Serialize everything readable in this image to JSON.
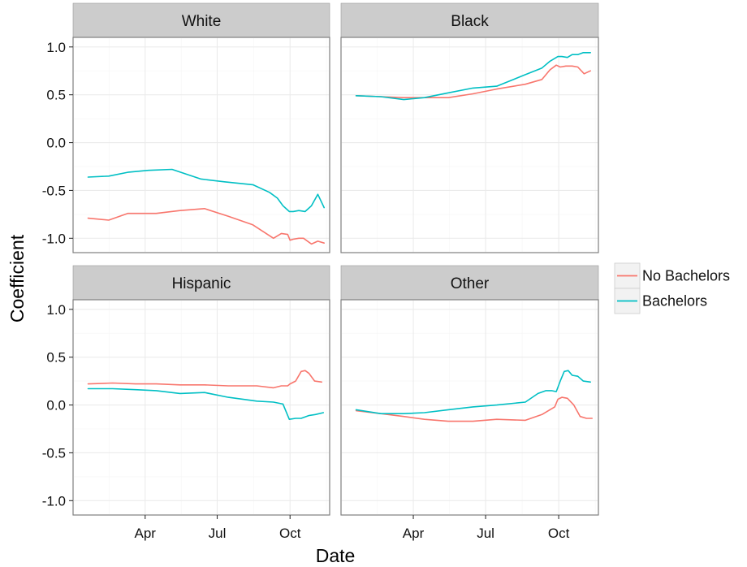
{
  "chart_data": {
    "type": "line",
    "layout": "facet_wrap_2x2",
    "xlabel": "Date",
    "ylabel": "Coefficient",
    "x_ticks": [
      {
        "label": "Apr",
        "date": "2016-04-01"
      },
      {
        "label": "Jul",
        "date": "2016-07-01"
      },
      {
        "label": "Oct",
        "date": "2016-10-01"
      }
    ],
    "xlim": [
      "2016-01-01",
      "2016-11-20"
    ],
    "ylim": [
      -1.15,
      1.1
    ],
    "y_ticks": [
      {
        "value": 1.0,
        "label": "1.0"
      },
      {
        "value": 0.5,
        "label": "0.5"
      },
      {
        "value": 0.0,
        "label": "0.0"
      },
      {
        "value": -0.5,
        "label": "-0.5"
      },
      {
        "value": -1.0,
        "label": "-1.0"
      }
    ],
    "grid": true,
    "legend": {
      "position": "right",
      "entries": [
        {
          "name": "No Bachelors",
          "color": "#F8766D"
        },
        {
          "name": "Bachelors",
          "color": "#00BFC4"
        }
      ]
    },
    "panels": [
      {
        "title": "White",
        "series": [
          {
            "name": "No Bachelors",
            "points": [
              [
                "2016-01-20",
                -0.79
              ],
              [
                "2016-02-15",
                -0.81
              ],
              [
                "2016-03-10",
                -0.74
              ],
              [
                "2016-04-15",
                -0.74
              ],
              [
                "2016-05-15",
                -0.71
              ],
              [
                "2016-06-15",
                -0.69
              ],
              [
                "2016-07-15",
                -0.77
              ],
              [
                "2016-08-15",
                -0.86
              ],
              [
                "2016-09-10",
                -1.0
              ],
              [
                "2016-09-20",
                -0.95
              ],
              [
                "2016-09-28",
                -0.96
              ],
              [
                "2016-10-01",
                -1.02
              ],
              [
                "2016-10-05",
                -1.01
              ],
              [
                "2016-10-12",
                -1.0
              ],
              [
                "2016-10-18",
                -1.0
              ],
              [
                "2016-10-28",
                -1.06
              ],
              [
                "2016-11-05",
                -1.03
              ],
              [
                "2016-11-13",
                -1.05
              ]
            ]
          },
          {
            "name": "Bachelors",
            "points": [
              [
                "2016-01-20",
                -0.36
              ],
              [
                "2016-02-15",
                -0.35
              ],
              [
                "2016-03-10",
                -0.31
              ],
              [
                "2016-04-05",
                -0.29
              ],
              [
                "2016-05-05",
                -0.28
              ],
              [
                "2016-06-10",
                -0.38
              ],
              [
                "2016-07-10",
                -0.41
              ],
              [
                "2016-08-15",
                -0.44
              ],
              [
                "2016-09-05",
                -0.52
              ],
              [
                "2016-09-15",
                -0.58
              ],
              [
                "2016-09-22",
                -0.66
              ],
              [
                "2016-09-30",
                -0.72
              ],
              [
                "2016-10-05",
                -0.72
              ],
              [
                "2016-10-12",
                -0.71
              ],
              [
                "2016-10-20",
                -0.72
              ],
              [
                "2016-10-28",
                -0.66
              ],
              [
                "2016-11-05",
                -0.54
              ],
              [
                "2016-11-13",
                -0.68
              ]
            ]
          }
        ]
      },
      {
        "title": "Black",
        "series": [
          {
            "name": "No Bachelors",
            "points": [
              [
                "2016-01-20",
                0.49
              ],
              [
                "2016-02-20",
                0.48
              ],
              [
                "2016-03-20",
                0.47
              ],
              [
                "2016-04-15",
                0.47
              ],
              [
                "2016-05-15",
                0.47
              ],
              [
                "2016-06-15",
                0.51
              ],
              [
                "2016-07-15",
                0.56
              ],
              [
                "2016-08-20",
                0.61
              ],
              [
                "2016-09-10",
                0.66
              ],
              [
                "2016-09-20",
                0.76
              ],
              [
                "2016-09-28",
                0.81
              ],
              [
                "2016-10-03",
                0.79
              ],
              [
                "2016-10-10",
                0.8
              ],
              [
                "2016-10-18",
                0.8
              ],
              [
                "2016-10-25",
                0.79
              ],
              [
                "2016-11-02",
                0.72
              ],
              [
                "2016-11-10",
                0.75
              ]
            ]
          },
          {
            "name": "Bachelors",
            "points": [
              [
                "2016-01-20",
                0.49
              ],
              [
                "2016-02-20",
                0.48
              ],
              [
                "2016-03-20",
                0.45
              ],
              [
                "2016-04-15",
                0.47
              ],
              [
                "2016-05-15",
                0.52
              ],
              [
                "2016-06-15",
                0.57
              ],
              [
                "2016-07-15",
                0.59
              ],
              [
                "2016-08-20",
                0.71
              ],
              [
                "2016-09-10",
                0.78
              ],
              [
                "2016-09-20",
                0.85
              ],
              [
                "2016-09-30",
                0.9
              ],
              [
                "2016-10-05",
                0.9
              ],
              [
                "2016-10-12",
                0.89
              ],
              [
                "2016-10-18",
                0.92
              ],
              [
                "2016-10-25",
                0.92
              ],
              [
                "2016-11-01",
                0.94
              ],
              [
                "2016-11-10",
                0.94
              ]
            ]
          }
        ]
      },
      {
        "title": "Hispanic",
        "series": [
          {
            "name": "No Bachelors",
            "points": [
              [
                "2016-01-20",
                0.22
              ],
              [
                "2016-02-20",
                0.23
              ],
              [
                "2016-03-20",
                0.22
              ],
              [
                "2016-04-15",
                0.22
              ],
              [
                "2016-05-15",
                0.21
              ],
              [
                "2016-06-15",
                0.21
              ],
              [
                "2016-07-15",
                0.2
              ],
              [
                "2016-08-20",
                0.2
              ],
              [
                "2016-09-10",
                0.18
              ],
              [
                "2016-09-20",
                0.2
              ],
              [
                "2016-09-28",
                0.2
              ],
              [
                "2016-10-01",
                0.22
              ],
              [
                "2016-10-08",
                0.25
              ],
              [
                "2016-10-15",
                0.35
              ],
              [
                "2016-10-20",
                0.36
              ],
              [
                "2016-10-25",
                0.33
              ],
              [
                "2016-11-01",
                0.25
              ],
              [
                "2016-11-10",
                0.24
              ]
            ]
          },
          {
            "name": "Bachelors",
            "points": [
              [
                "2016-01-20",
                0.17
              ],
              [
                "2016-02-20",
                0.17
              ],
              [
                "2016-03-20",
                0.16
              ],
              [
                "2016-04-15",
                0.15
              ],
              [
                "2016-05-15",
                0.12
              ],
              [
                "2016-06-15",
                0.13
              ],
              [
                "2016-07-15",
                0.08
              ],
              [
                "2016-08-20",
                0.04
              ],
              [
                "2016-09-10",
                0.03
              ],
              [
                "2016-09-22",
                0.01
              ],
              [
                "2016-09-30",
                -0.15
              ],
              [
                "2016-10-08",
                -0.14
              ],
              [
                "2016-10-15",
                -0.14
              ],
              [
                "2016-10-25",
                -0.11
              ],
              [
                "2016-11-02",
                -0.1
              ],
              [
                "2016-11-12",
                -0.08
              ]
            ]
          }
        ]
      },
      {
        "title": "Other",
        "series": [
          {
            "name": "No Bachelors",
            "points": [
              [
                "2016-01-20",
                -0.06
              ],
              [
                "2016-02-20",
                -0.09
              ],
              [
                "2016-03-20",
                -0.12
              ],
              [
                "2016-04-15",
                -0.15
              ],
              [
                "2016-05-15",
                -0.17
              ],
              [
                "2016-06-15",
                -0.17
              ],
              [
                "2016-07-15",
                -0.15
              ],
              [
                "2016-08-20",
                -0.16
              ],
              [
                "2016-09-10",
                -0.1
              ],
              [
                "2016-09-20",
                -0.05
              ],
              [
                "2016-09-26",
                -0.02
              ],
              [
                "2016-09-30",
                0.06
              ],
              [
                "2016-10-05",
                0.08
              ],
              [
                "2016-10-12",
                0.07
              ],
              [
                "2016-10-20",
                0.0
              ],
              [
                "2016-10-28",
                -0.12
              ],
              [
                "2016-11-05",
                -0.14
              ],
              [
                "2016-11-12",
                -0.14
              ]
            ]
          },
          {
            "name": "Bachelors",
            "points": [
              [
                "2016-01-20",
                -0.05
              ],
              [
                "2016-02-20",
                -0.09
              ],
              [
                "2016-03-20",
                -0.09
              ],
              [
                "2016-04-15",
                -0.08
              ],
              [
                "2016-05-15",
                -0.05
              ],
              [
                "2016-06-15",
                -0.02
              ],
              [
                "2016-07-15",
                0.0
              ],
              [
                "2016-08-20",
                0.03
              ],
              [
                "2016-09-05",
                0.12
              ],
              [
                "2016-09-15",
                0.15
              ],
              [
                "2016-09-22",
                0.15
              ],
              [
                "2016-09-28",
                0.14
              ],
              [
                "2016-10-03",
                0.25
              ],
              [
                "2016-10-08",
                0.35
              ],
              [
                "2016-10-13",
                0.36
              ],
              [
                "2016-10-18",
                0.31
              ],
              [
                "2016-10-25",
                0.3
              ],
              [
                "2016-11-01",
                0.25
              ],
              [
                "2016-11-10",
                0.24
              ]
            ]
          }
        ]
      }
    ]
  }
}
